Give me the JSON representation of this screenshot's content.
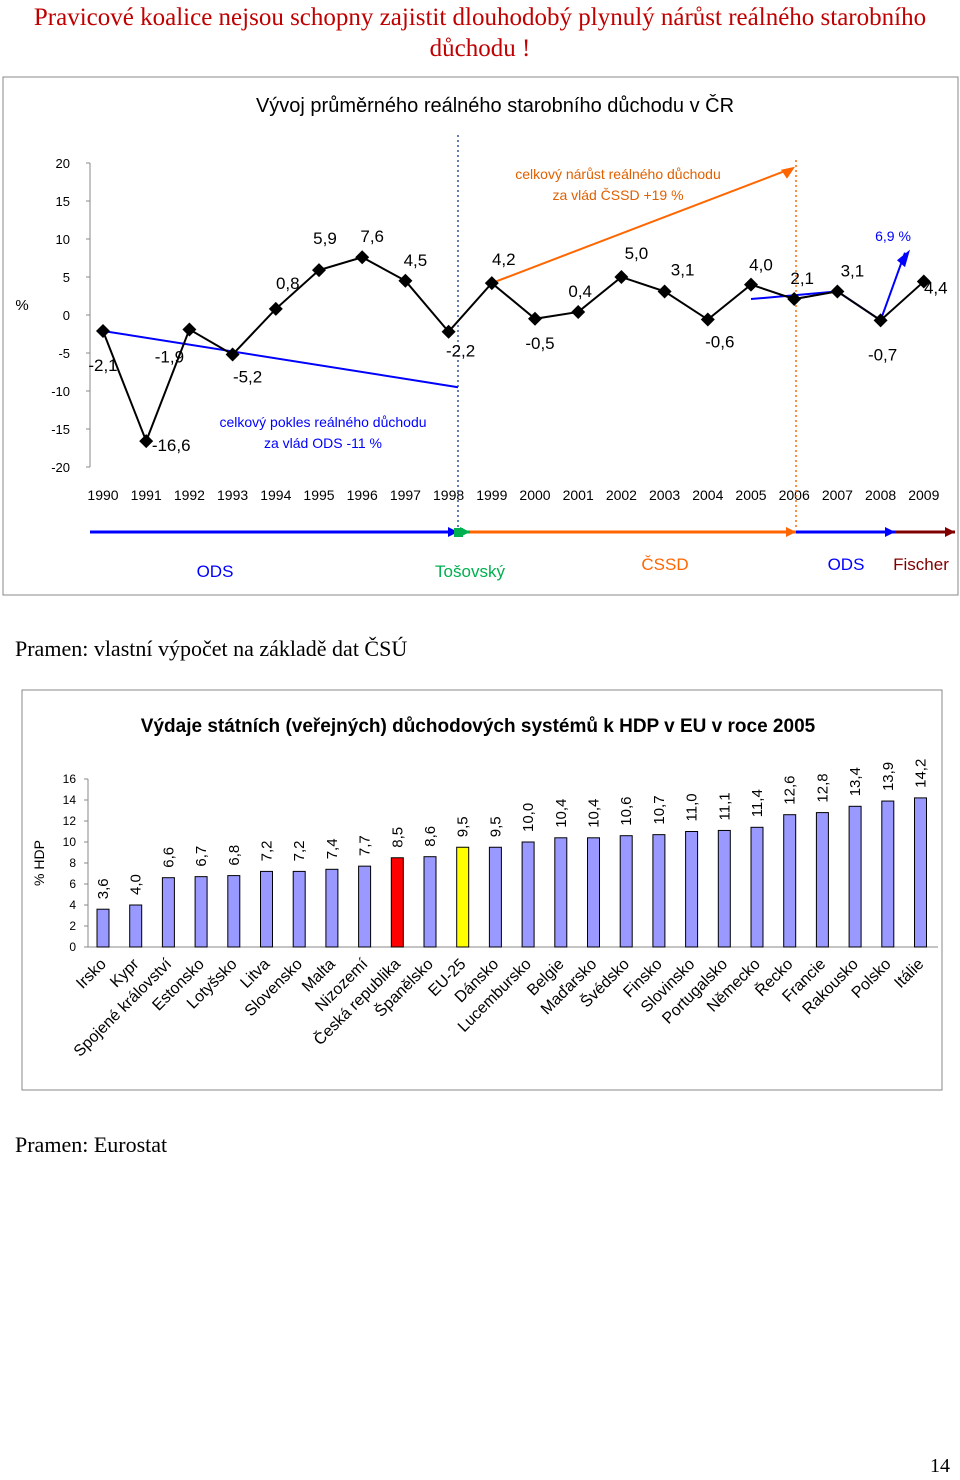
{
  "heading": "Pravicové koalice nejsou  schopny zajistit dlouhodobý plynulý nárůst reálného starobního důchodu !",
  "source1": "Pramen: vlastní výpočet na základě dat ČSÚ",
  "source2": "Pramen: Eurostat",
  "page_number": "14",
  "chart_data": [
    {
      "type": "line",
      "title": "Vývoj průměrného reálného starobního důchodu v ČR",
      "ylabel": "%",
      "ylim": [
        -20,
        20
      ],
      "y_ticks": [
        "20",
        "15",
        "10",
        "5",
        "0",
        "-5",
        "-10",
        "-15",
        "-20"
      ],
      "x": [
        "1990",
        "1991",
        "1992",
        "1993",
        "1994",
        "1995",
        "1996",
        "1997",
        "1998",
        "1999",
        "2000",
        "2001",
        "2002",
        "2003",
        "2004",
        "2005",
        "2006",
        "2007",
        "2008",
        "2009"
      ],
      "value_labels": [
        "-2,1",
        "-16,6",
        "-1,9",
        "-5,2",
        "0,8",
        "5,9",
        "7,6",
        "4,5",
        "-2,2",
        "4,2",
        "-0,5",
        "0,4",
        "5,0",
        "3,1",
        "-0,6",
        "4,0",
        "2,1",
        "3,1",
        "-0,7",
        "4,4"
      ],
      "values": [
        -2.1,
        -16.6,
        -1.9,
        -5.2,
        0.8,
        5.9,
        7.6,
        4.5,
        -2.2,
        4.2,
        -0.5,
        0.4,
        5.0,
        3.1,
        -0.6,
        4.0,
        2.1,
        3.1,
        -0.7,
        4.4
      ],
      "annotations": {
        "cssd_line1": "celkový nárůst reálného důchodu",
        "cssd_line2": "za vlád ČSSD +19 %",
        "ods_line1": "celkový pokles reálného důchodu",
        "ods_line2": "za vlád ODS -11 %",
        "ods2_label": "6,9 %"
      },
      "periods": [
        {
          "name": "ODS",
          "color": "#0000ff"
        },
        {
          "name": "Tošovský",
          "color": "#00b050"
        },
        {
          "name": "ČSSD",
          "color": "#ff6600"
        },
        {
          "name": "ODS",
          "color": "#0000ff"
        },
        {
          "name": "Fischer",
          "color": "#800000"
        }
      ]
    },
    {
      "type": "bar",
      "title": "Výdaje státních (veřejných) důchodových systémů k HDP v EU v roce 2005",
      "ylabel": "% HDP",
      "ylim": [
        0,
        16
      ],
      "y_ticks": [
        "16",
        "14",
        "12",
        "10",
        "8",
        "6",
        "4",
        "2",
        "0"
      ],
      "categories": [
        "Irsko",
        "Kypr",
        "Spojené království",
        "Estonsko",
        "Lotyšsko",
        "Litva",
        "Slovensko",
        "Malta",
        "Nizozemí",
        "Česká republika",
        "Španělsko",
        "EU-25",
        "Dánsko",
        "Lucembursko",
        "Belgie",
        "Maďarsko",
        "Švédsko",
        "Finsko",
        "Slovinsko",
        "Portugalsko",
        "Německo",
        "Řecko",
        "Francie",
        "Rakousko",
        "Polsko",
        "Itálie"
      ],
      "values": [
        3.6,
        4.0,
        6.6,
        6.7,
        6.8,
        7.2,
        7.2,
        7.4,
        7.7,
        8.5,
        8.6,
        9.5,
        9.5,
        10.0,
        10.4,
        10.4,
        10.6,
        10.7,
        11.0,
        11.1,
        11.4,
        12.6,
        12.8,
        13.4,
        13.9,
        14.2
      ],
      "value_labels": [
        "3,6",
        "4,0",
        "6,6",
        "6,7",
        "6,8",
        "7,2",
        "7,2",
        "7,4",
        "7,7",
        "8,5",
        "8,6",
        "9,5",
        "9,5",
        "10,0",
        "10,4",
        "10,4",
        "10,6",
        "10,7",
        "11,0",
        "11,1",
        "11,4",
        "12,6",
        "12,8",
        "13,4",
        "13,9",
        "14,2"
      ],
      "bar_color": "#9999ff",
      "highlight": {
        "Česká republika": "#ff0000",
        "EU-25": "#ffff00"
      }
    }
  ]
}
